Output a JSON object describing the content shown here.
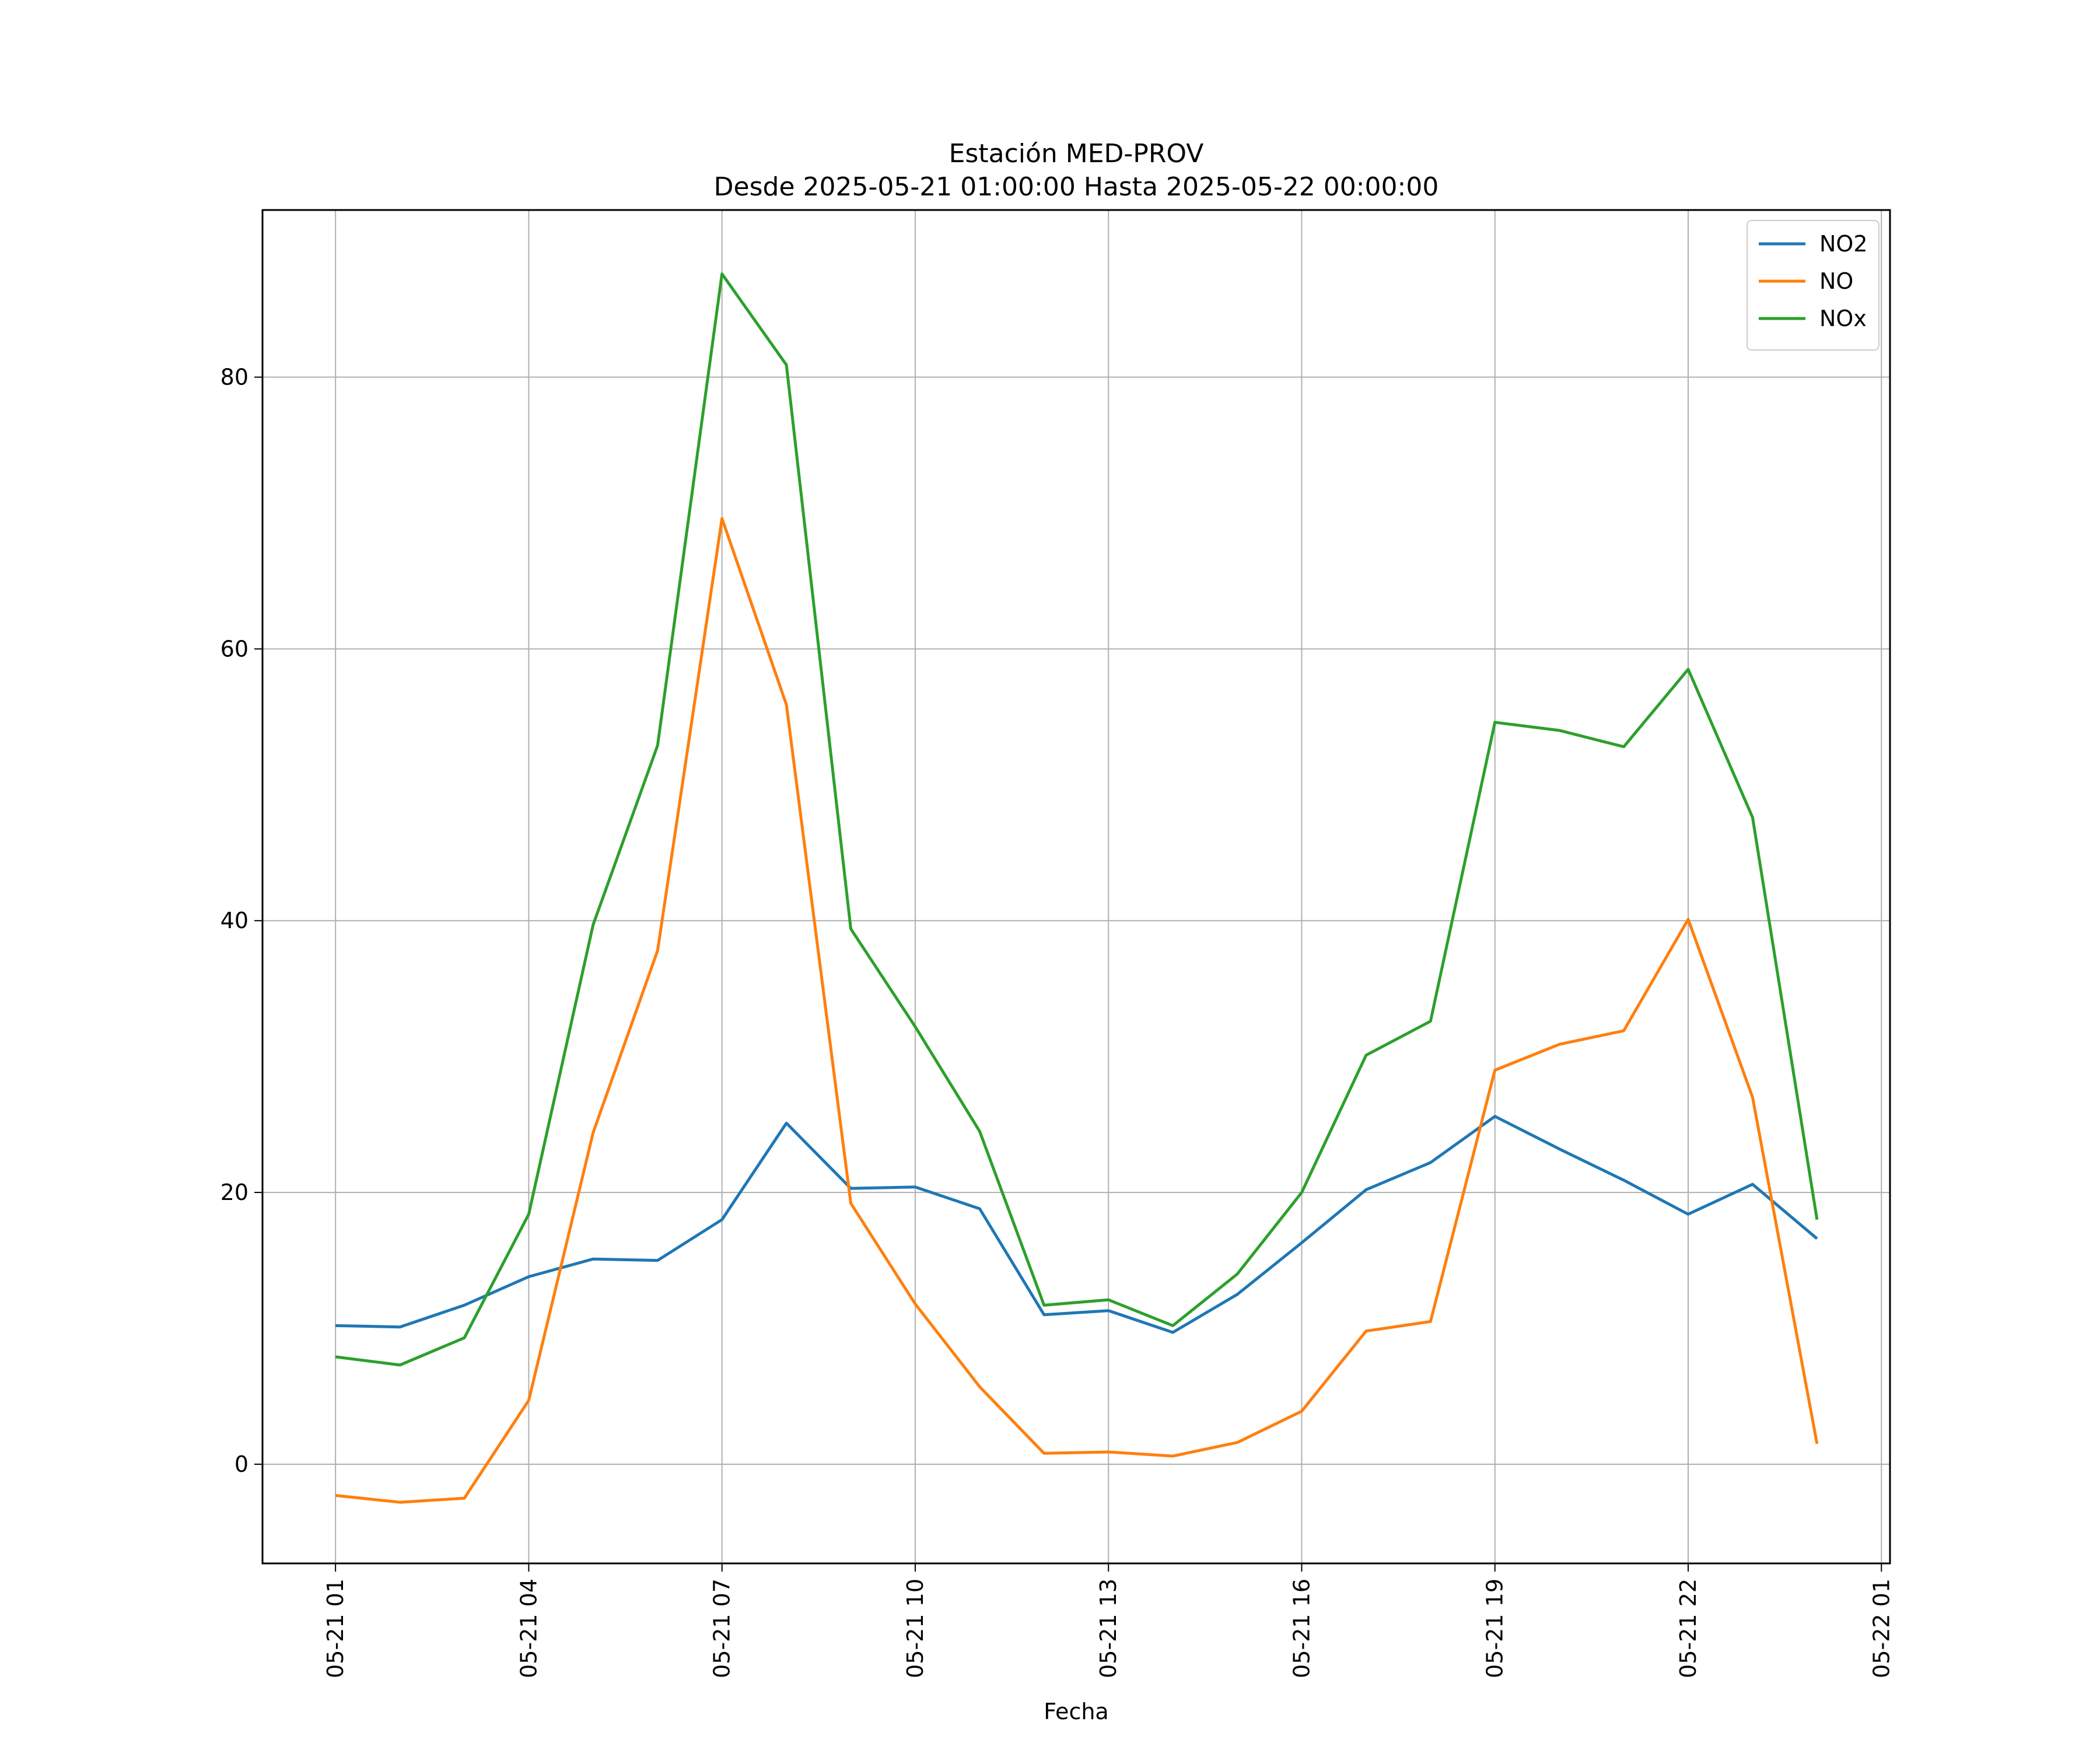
{
  "chart_data": {
    "type": "line",
    "title": "Estación MED-PROV",
    "subtitle": "Desde 2025-05-21 01:00:00 Hasta 2025-05-22 00:00:00",
    "xlabel": "Fecha",
    "ylabel": "",
    "x": [
      "05-21 01",
      "05-21 02",
      "05-21 03",
      "05-21 04",
      "05-21 05",
      "05-21 06",
      "05-21 07",
      "05-21 08",
      "05-21 09",
      "05-21 10",
      "05-21 11",
      "05-21 12",
      "05-21 13",
      "05-21 14",
      "05-21 15",
      "05-21 16",
      "05-21 17",
      "05-21 18",
      "05-21 19",
      "05-21 20",
      "05-21 21",
      "05-21 22",
      "05-21 23",
      "05-22 00"
    ],
    "x_ticks": [
      "05-21 01",
      "05-21 04",
      "05-21 07",
      "05-21 10",
      "05-21 13",
      "05-21 16",
      "05-21 19",
      "05-21 22",
      "05-22 01"
    ],
    "xlim": [
      "05-20 23:52",
      "05-22 01:08"
    ],
    "y_ticks": [
      0,
      20,
      40,
      60,
      80
    ],
    "ylim": [
      -7.3,
      92.3
    ],
    "grid": true,
    "legend_position": "top-right",
    "series": [
      {
        "name": "NO2",
        "color": "#1f77b4",
        "values": [
          10.2,
          10.1,
          11.7,
          13.8,
          15.1,
          15.0,
          18.0,
          25.1,
          20.3,
          20.4,
          18.8,
          11.0,
          11.3,
          9.7,
          12.5,
          16.3,
          20.2,
          22.2,
          25.6,
          23.2,
          20.9,
          18.4,
          20.6,
          16.6
        ]
      },
      {
        "name": "NO",
        "color": "#ff7f0e",
        "values": [
          -2.3,
          -2.8,
          -2.5,
          4.7,
          24.4,
          37.8,
          69.6,
          55.9,
          19.2,
          11.8,
          5.7,
          0.8,
          0.9,
          0.6,
          1.6,
          3.9,
          9.8,
          10.5,
          29.0,
          30.9,
          31.9,
          40.1,
          27.0,
          1.5
        ]
      },
      {
        "name": "NOx",
        "color": "#2ca02c",
        "values": [
          7.9,
          7.3,
          9.3,
          18.4,
          39.7,
          52.9,
          87.6,
          80.9,
          39.4,
          32.2,
          24.5,
          11.7,
          12.1,
          10.2,
          14.0,
          20.0,
          30.1,
          32.6,
          54.6,
          54.0,
          52.8,
          58.5,
          47.6,
          18.0
        ]
      }
    ]
  }
}
